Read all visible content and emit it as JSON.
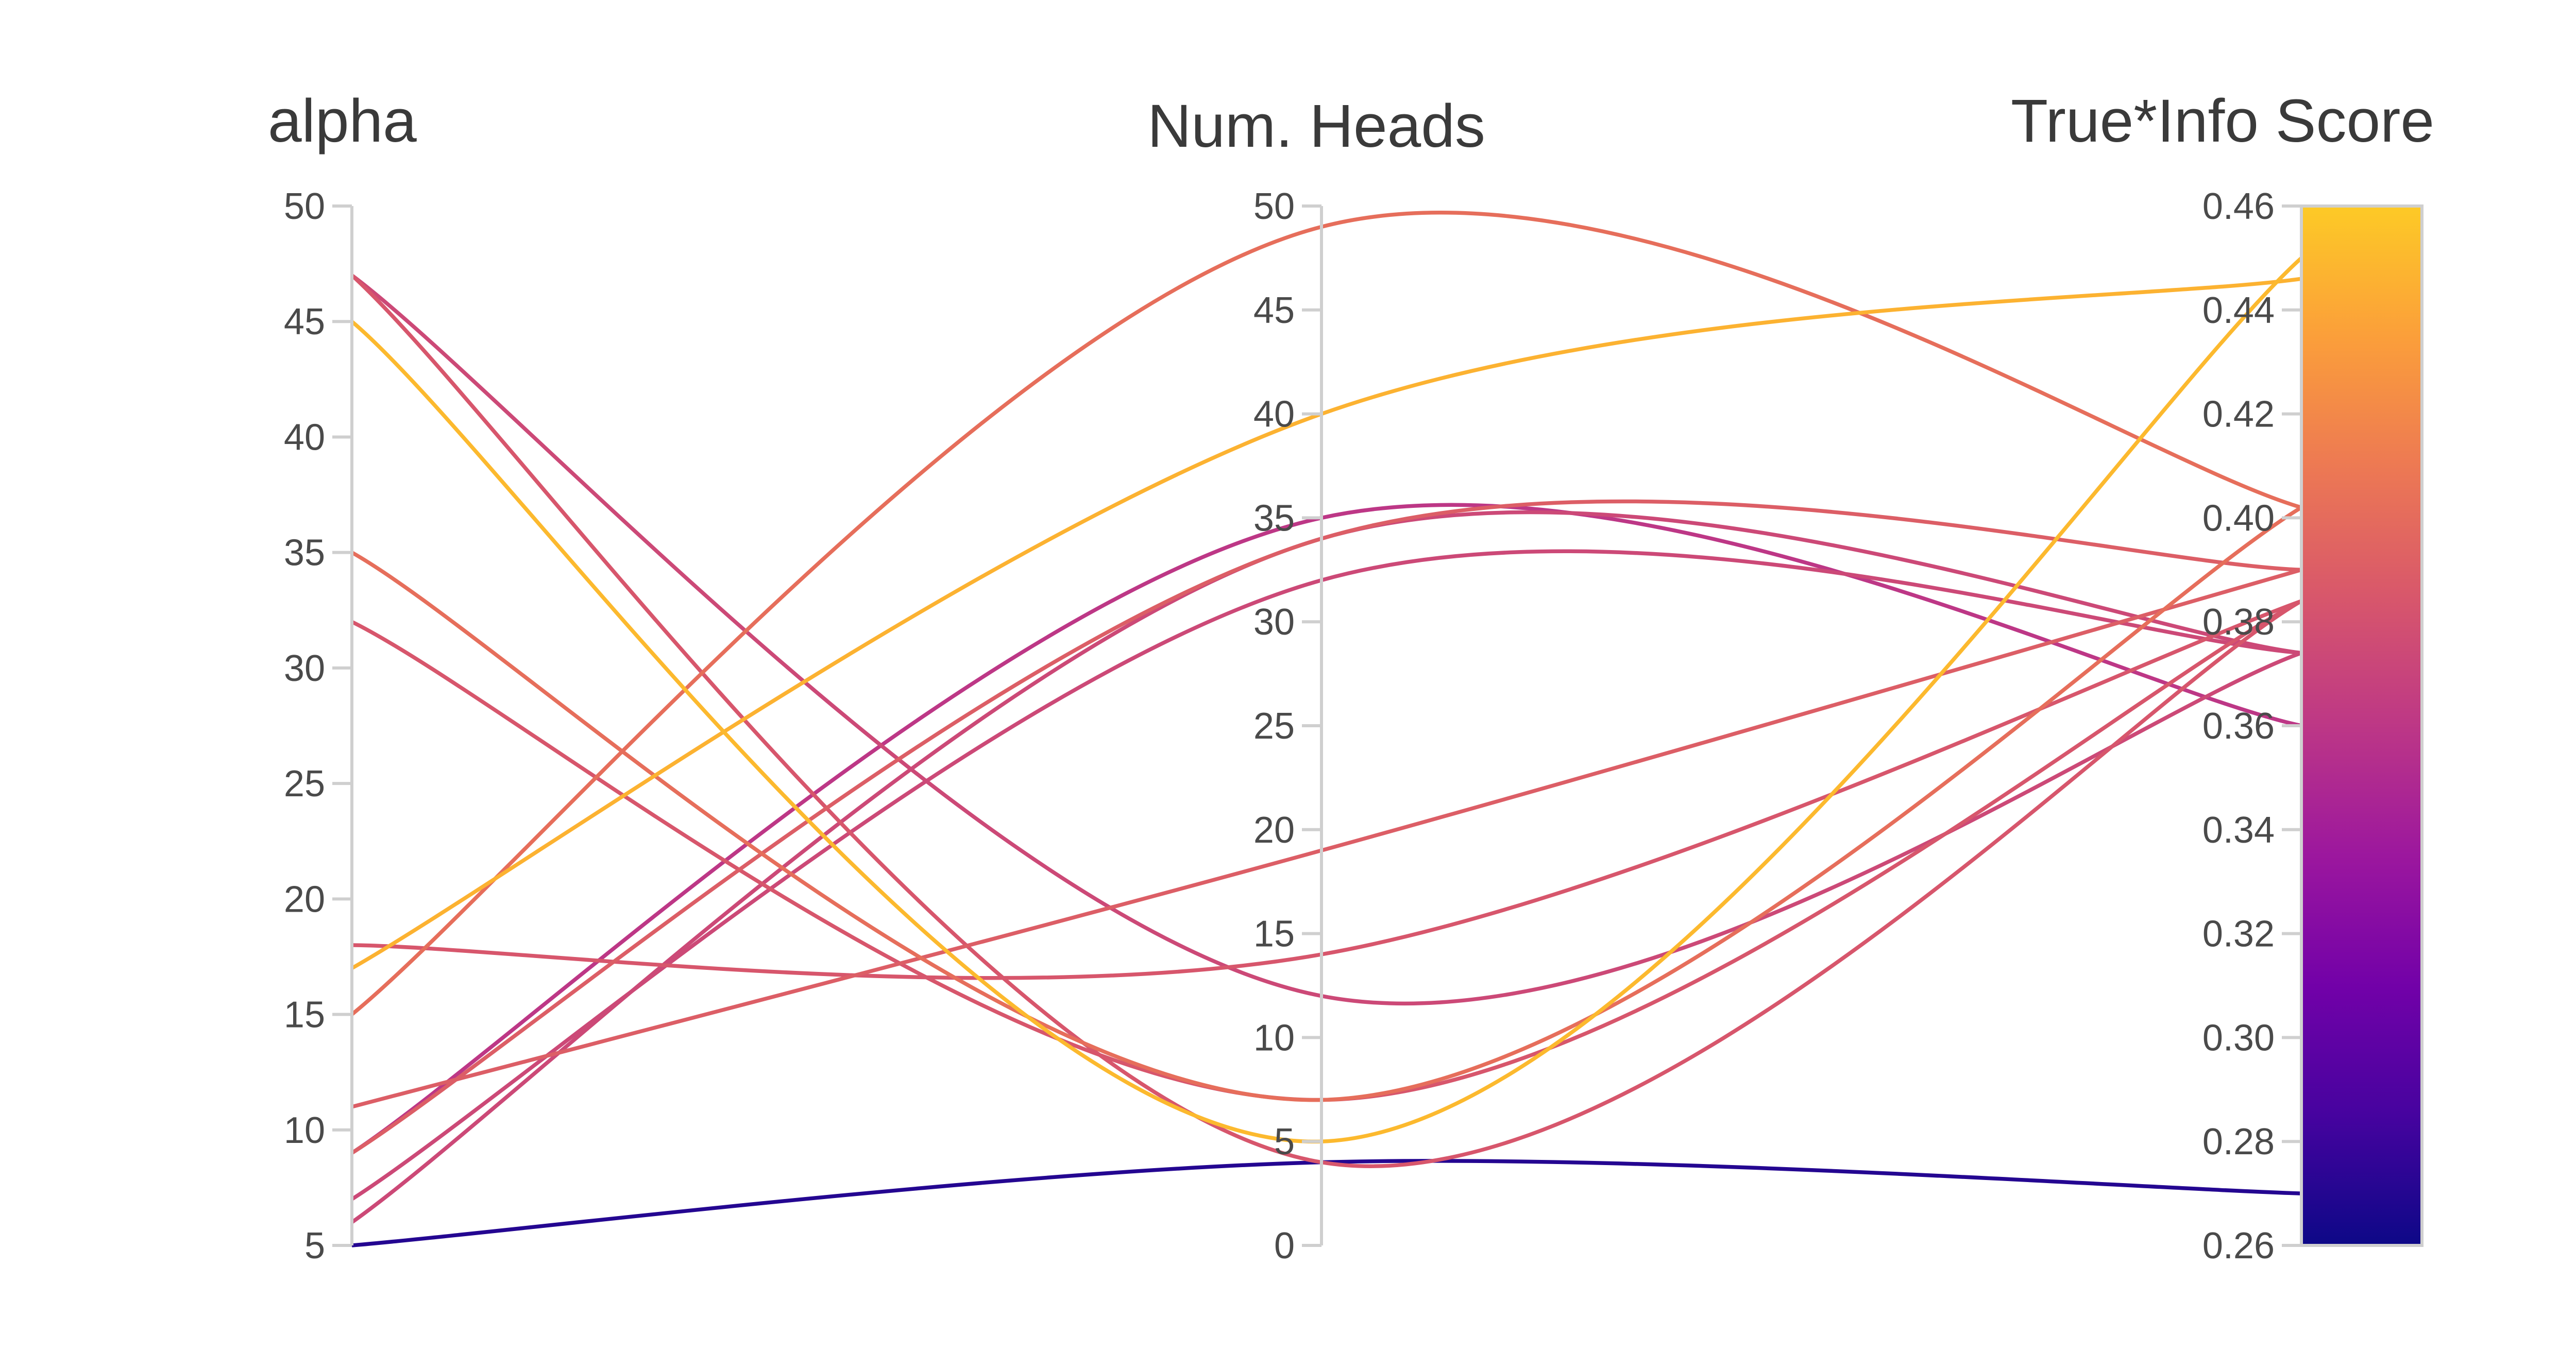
{
  "chart_data": {
    "type": "parallel_coordinates",
    "title": "",
    "axes": [
      {
        "key": "alpha",
        "label": "alpha",
        "range": [
          5,
          50
        ],
        "ticks": [
          5,
          10,
          15,
          20,
          25,
          30,
          35,
          40,
          45,
          50
        ]
      },
      {
        "key": "heads",
        "label": "Num. Heads",
        "range": [
          0,
          50
        ],
        "ticks": [
          0,
          5,
          10,
          15,
          20,
          25,
          30,
          35,
          40,
          45,
          50
        ]
      },
      {
        "key": "score",
        "label": "True*Info Score",
        "range": [
          0.26,
          0.46
        ],
        "ticks": [
          "0.26",
          "0.28",
          "0.30",
          "0.32",
          "0.34",
          "0.36",
          "0.38",
          "0.40",
          "0.42",
          "0.44",
          "0.46"
        ]
      }
    ],
    "colorscale": {
      "name": "plasma",
      "range": [
        0.26,
        0.46
      ],
      "stops": [
        "#0d0887",
        "#46039f",
        "#7201a8",
        "#9c179e",
        "#bd3786",
        "#d8576b",
        "#ed7953",
        "#fb9f3a",
        "#fdca26"
      ]
    },
    "series": [
      {
        "alpha": 5,
        "heads": 4,
        "score": 0.27
      },
      {
        "alpha": 6,
        "heads": 34,
        "score": 0.374
      },
      {
        "alpha": 7,
        "heads": 32,
        "score": 0.374
      },
      {
        "alpha": 9,
        "heads": 34,
        "score": 0.39
      },
      {
        "alpha": 9,
        "heads": 35,
        "score": 0.36
      },
      {
        "alpha": 11,
        "heads": 19,
        "score": 0.39
      },
      {
        "alpha": 15,
        "heads": 49,
        "score": 0.402
      },
      {
        "alpha": 17,
        "heads": 40,
        "score": 0.446
      },
      {
        "alpha": 18,
        "heads": 14,
        "score": 0.384
      },
      {
        "alpha": 32,
        "heads": 7,
        "score": 0.384
      },
      {
        "alpha": 35,
        "heads": 7,
        "score": 0.402
      },
      {
        "alpha": 45,
        "heads": 5,
        "score": 0.45
      },
      {
        "alpha": 47,
        "heads": 4,
        "score": 0.384
      },
      {
        "alpha": 47,
        "heads": 12,
        "score": 0.374
      }
    ]
  }
}
